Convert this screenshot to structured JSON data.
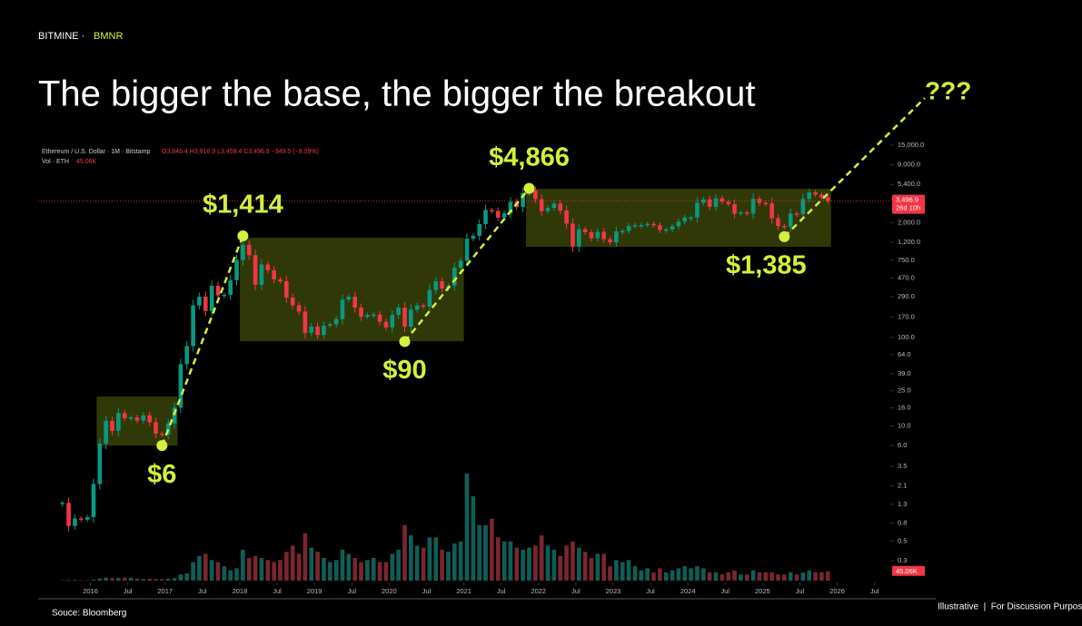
{
  "brand": "BITMINE ·",
  "ticker": "BMNR",
  "source": "Souce: Bloomberg",
  "footer": "Illustrative  |  For Discussion Purposes",
  "chart_data": {
    "type": "candlestick",
    "title": "The bigger the base, the bigger the breakout",
    "log_scale": true,
    "ohlc_label": "O3,846.4 H3,916.9 L3,459.4 C3,496.9 −349.5 (−9.09%)",
    "last_price_label": "3,496.9",
    "countdown": "26d 10h",
    "last_value_label": "45.06K",
    "up_color": "#089981",
    "down_color": "#f23645",
    "x": [
      "2015-08",
      "2015-09",
      "2015-10",
      "2015-11",
      "2015-12",
      "2016-01",
      "2016-02",
      "2016-03",
      "2016-04",
      "2016-05",
      "2016-06",
      "2016-07",
      "2016-08",
      "2016-09",
      "2016-10",
      "2016-11",
      "2016-12",
      "2017-01",
      "2017-02",
      "2017-03",
      "2017-04",
      "2017-05",
      "2017-06",
      "2017-07",
      "2017-08",
      "2017-09",
      "2017-10",
      "2017-11",
      "2017-12",
      "2018-01",
      "2018-02",
      "2018-03",
      "2018-04",
      "2018-05",
      "2018-06",
      "2018-07",
      "2018-08",
      "2018-09",
      "2018-10",
      "2018-11",
      "2018-12",
      "2019-01",
      "2019-02",
      "2019-03",
      "2019-04",
      "2019-05",
      "2019-06",
      "2019-07",
      "2019-08",
      "2019-09",
      "2019-10",
      "2019-11",
      "2019-12",
      "2020-01",
      "2020-02",
      "2020-03",
      "2020-04",
      "2020-05",
      "2020-06",
      "2020-07",
      "2020-08",
      "2020-09",
      "2020-10",
      "2020-11",
      "2020-12",
      "2021-01",
      "2021-02",
      "2021-03",
      "2021-04",
      "2021-05",
      "2021-06",
      "2021-07",
      "2021-08",
      "2021-09",
      "2021-10",
      "2021-11",
      "2021-12",
      "2022-01",
      "2022-02",
      "2022-03",
      "2022-04",
      "2022-05",
      "2022-06",
      "2022-07",
      "2022-08",
      "2022-09",
      "2022-10",
      "2022-11",
      "2022-12",
      "2023-01",
      "2023-02",
      "2023-03",
      "2023-04",
      "2023-05",
      "2023-06",
      "2023-07",
      "2023-08",
      "2023-09",
      "2023-10",
      "2023-11",
      "2023-12",
      "2024-01",
      "2024-02",
      "2024-03",
      "2024-04",
      "2024-05",
      "2024-06",
      "2024-07",
      "2024-08",
      "2024-09",
      "2024-10",
      "2024-11",
      "2024-12",
      "2025-01",
      "2025-02",
      "2025-03",
      "2025-04",
      "2025-05",
      "2025-06",
      "2025-07",
      "2025-08",
      "2025-09",
      "2025-10",
      "2025-11"
    ],
    "series": [
      {
        "name": "Ethereum / U.S. Dollar · 1M · Bitstamp",
        "values": [
          1.35,
          0.74,
          0.9,
          0.87,
          0.93,
          2.2,
          6.3,
          11.4,
          8.8,
          14.0,
          12.2,
          12.5,
          11.5,
          13.2,
          11.0,
          8.2,
          8.0,
          10.7,
          16.1,
          50,
          80,
          230,
          290,
          200,
          385,
          300,
          305,
          445,
          756,
          1118,
          855,
          395,
          670,
          577,
          455,
          433,
          283,
          232,
          197,
          113,
          133,
          107,
          136,
          141,
          162,
          268,
          290,
          218,
          172,
          180,
          182,
          151,
          130,
          180,
          218,
          133,
          207,
          231,
          225,
          345,
          434,
          359,
          386,
          616,
          737,
          1314,
          1416,
          1919,
          2772,
          2707,
          2275,
          2536,
          3433,
          3001,
          4288,
          4631,
          3683,
          2688,
          2920,
          3282,
          2727,
          1942,
          1067,
          1680,
          1553,
          1328,
          1572,
          1296,
          1196,
          1585,
          1605,
          1822,
          1870,
          1874,
          1934,
          1857,
          1645,
          1671,
          1815,
          2052,
          2282,
          2283,
          3340,
          3647,
          3014,
          3763,
          3433,
          3232,
          2513,
          2602,
          2518,
          3705,
          3332,
          3300,
          2237,
          1822,
          1794,
          2528,
          2486,
          3697,
          4391,
          4145,
          3846.4,
          3496.9
        ]
      },
      {
        "name": "Vol · ETH",
        "axis": "y2",
        "values": [
          2,
          3,
          3,
          2,
          2,
          5,
          10,
          15,
          12,
          13,
          15,
          14,
          10,
          8,
          9,
          8,
          7,
          10,
          12,
          30,
          35,
          90,
          120,
          130,
          100,
          90,
          70,
          50,
          60,
          150,
          110,
          120,
          110,
          100,
          90,
          100,
          140,
          170,
          130,
          230,
          160,
          140,
          110,
          90,
          100,
          150,
          130,
          110,
          90,
          100,
          110,
          90,
          90,
          130,
          150,
          270,
          220,
          170,
          160,
          210,
          210,
          150,
          140,
          180,
          190,
          520,
          410,
          270,
          270,
          300,
          210,
          190,
          190,
          160,
          150,
          160,
          170,
          220,
          170,
          150,
          120,
          170,
          190,
          160,
          140,
          110,
          130,
          130,
          70,
          100,
          90,
          100,
          70,
          50,
          60,
          40,
          60,
          40,
          50,
          60,
          70,
          60,
          70,
          60,
          40,
          40,
          30,
          40,
          50,
          30,
          30,
          50,
          40,
          40,
          40,
          30,
          30,
          40,
          30,
          40,
          50,
          40,
          40,
          45.06
        ]
      }
    ],
    "xlim": [
      2015.3,
      2026.65
    ],
    "xticks": [
      {
        "value": 2016,
        "label": "2016"
      },
      {
        "value": 2016.5,
        "label": "Jul"
      },
      {
        "value": 2017,
        "label": "2017"
      },
      {
        "value": 2017.5,
        "label": "Jul"
      },
      {
        "value": 2018,
        "label": "2018"
      },
      {
        "value": 2018.5,
        "label": "Jul"
      },
      {
        "value": 2019,
        "label": "2019"
      },
      {
        "value": 2019.5,
        "label": "Jul"
      },
      {
        "value": 2020,
        "label": "2020"
      },
      {
        "value": 2020.5,
        "label": "Jul"
      },
      {
        "value": 2021,
        "label": "2021"
      },
      {
        "value": 2021.5,
        "label": "Jul"
      },
      {
        "value": 2022,
        "label": "2022"
      },
      {
        "value": 2022.5,
        "label": "Jul"
      },
      {
        "value": 2023,
        "label": "2023"
      },
      {
        "value": 2023.5,
        "label": "Jul"
      },
      {
        "value": 2024,
        "label": "2024"
      },
      {
        "value": 2024.5,
        "label": "Jul"
      },
      {
        "value": 2025,
        "label": "2025"
      },
      {
        "value": 2025.5,
        "label": "Jul"
      },
      {
        "value": 2026,
        "label": "2026"
      },
      {
        "value": 2026.5,
        "label": "Jul"
      }
    ],
    "ylim": [
      0.178,
      18120
    ],
    "yticks": [
      0.3,
      0.5,
      0.8,
      1.3,
      2.1,
      3.5,
      {
        "value": 6,
        "label": "6.0"
      },
      {
        "value": 10,
        "label": "10.0"
      },
      {
        "value": 16,
        "label": "16.0"
      },
      {
        "value": 25,
        "label": "25.0"
      },
      {
        "value": 39,
        "label": "39.0"
      },
      {
        "value": 64,
        "label": "64.0"
      },
      {
        "value": 100,
        "label": "100.0"
      },
      {
        "value": 170,
        "label": "170.0"
      },
      {
        "value": 290,
        "label": "290.0"
      },
      {
        "value": 470,
        "label": "470.0"
      },
      {
        "value": 750,
        "label": "750.0"
      },
      {
        "value": 1200,
        "label": "1,200.0"
      },
      {
        "value": 2000,
        "label": "2,000.0"
      },
      {
        "value": 5400,
        "label": "5,400.0"
      },
      {
        "value": 9000,
        "label": "9,000.0"
      },
      {
        "value": 15000,
        "label": "15,000.0"
      }
    ],
    "y2lim": [
      0,
      2150
    ],
    "bases": [
      {
        "x": [
          "2016-02",
          "2017-03"
        ],
        "range": [
          6,
          21.5
        ]
      },
      {
        "x": [
          "2018-01",
          "2021-01"
        ],
        "range": [
          91,
          1343
        ]
      },
      {
        "x": [
          "2021-11",
          "2025-12"
        ],
        "range": [
          1061,
          4810
        ]
      }
    ],
    "annotations": [
      {
        "label": "$6",
        "x": "2016-12",
        "value": 6
      },
      {
        "label": "$1,414",
        "x": "2018-01",
        "value": 1414
      },
      {
        "label": "$90",
        "x": "2020-03",
        "value": 90
      },
      {
        "label": "$4,866",
        "x": "2021-11",
        "value": 4866
      },
      {
        "label": "$1,385",
        "x": "2025-04",
        "value": 1385
      }
    ],
    "breakout_label": "???",
    "annotation_color": "#d4f03c"
  }
}
